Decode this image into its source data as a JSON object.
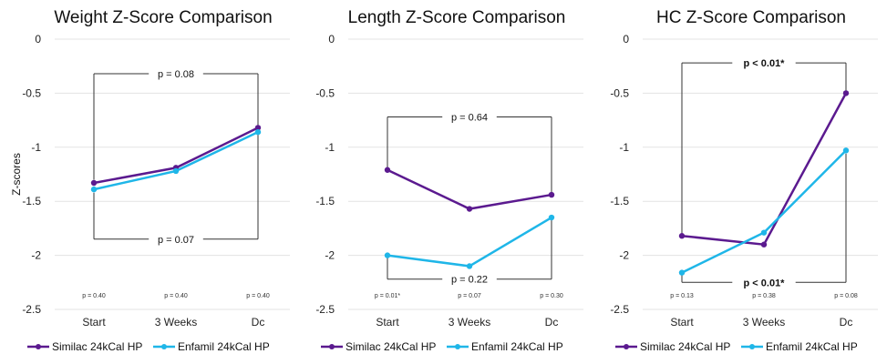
{
  "chart_data": [
    {
      "type": "line",
      "title": "Weight Z-Score Comparison",
      "ylabel": "Z-scores",
      "ylim": [
        -2.5,
        0
      ],
      "yticks": [
        "0",
        "-0.5",
        "-1",
        "-1.5",
        "-2",
        "-2.5"
      ],
      "categories": [
        "Start",
        "3 Weeks",
        "Dc"
      ],
      "series": [
        {
          "name": "Similac 24kCal HP",
          "color": "#5b1a8f",
          "values": [
            -1.33,
            -1.19,
            -0.82
          ]
        },
        {
          "name": "Enfamil 24kCal HP",
          "color": "#1fb6e8",
          "values": [
            -1.39,
            -1.22,
            -0.86
          ]
        }
      ],
      "point_pvalues": [
        "p = 0.40",
        "p = 0.40",
        "p = 0.40"
      ],
      "brackets": [
        {
          "label": "p = 0.08",
          "bold": false,
          "y": -0.32,
          "side": "top",
          "left_end": -1.3,
          "right_end": -0.8
        },
        {
          "label": "p = 0.07",
          "bold": false,
          "y": -1.85,
          "side": "bottom",
          "left_end": -1.42,
          "right_end": -0.88
        }
      ]
    },
    {
      "type": "line",
      "title": "Length Z-Score Comparison",
      "ylabel": "",
      "ylim": [
        -2.5,
        0
      ],
      "yticks": [
        "0",
        "-0.5",
        "-1",
        "-1.5",
        "-2",
        "-2.5"
      ],
      "categories": [
        "Start",
        "3 Weeks",
        "Dc"
      ],
      "series": [
        {
          "name": "Similac 24kCal HP",
          "color": "#5b1a8f",
          "values": [
            -1.21,
            -1.57,
            -1.44
          ]
        },
        {
          "name": "Enfamil 24kCal HP",
          "color": "#1fb6e8",
          "values": [
            -2.0,
            -2.1,
            -1.65
          ]
        }
      ],
      "point_pvalues": [
        "p = 0.01*",
        "p = 0.07",
        "p = 0.30"
      ],
      "brackets": [
        {
          "label": "p = 0.64",
          "bold": false,
          "y": -0.72,
          "side": "top",
          "left_end": -1.2,
          "right_end": -1.42
        },
        {
          "label": "p = 0.22",
          "bold": false,
          "y": -2.22,
          "side": "bottom",
          "left_end": -2.02,
          "right_end": -1.67
        }
      ]
    },
    {
      "type": "line",
      "title": "HC Z-Score Comparison",
      "ylabel": "",
      "ylim": [
        -2.5,
        0
      ],
      "yticks": [
        "0",
        "-0.5",
        "-1",
        "-1.5",
        "-2",
        "-2.5"
      ],
      "categories": [
        "Start",
        "3 Weeks",
        "Dc"
      ],
      "series": [
        {
          "name": "Similac 24kCal HP",
          "color": "#5b1a8f",
          "values": [
            -1.82,
            -1.9,
            -0.5
          ]
        },
        {
          "name": "Enfamil 24kCal HP",
          "color": "#1fb6e8",
          "values": [
            -2.16,
            -1.79,
            -1.03
          ]
        }
      ],
      "point_pvalues": [
        "p = 0.13",
        "p = 0.38",
        "p = 0.08"
      ],
      "brackets": [
        {
          "label": "p < 0.01*",
          "bold": true,
          "y": -0.22,
          "side": "top",
          "left_end": -1.8,
          "right_end": -0.48
        },
        {
          "label": "p < 0.01*",
          "bold": true,
          "y": -2.25,
          "side": "bottom",
          "left_end": -2.16,
          "right_end": -1.06
        }
      ]
    }
  ]
}
